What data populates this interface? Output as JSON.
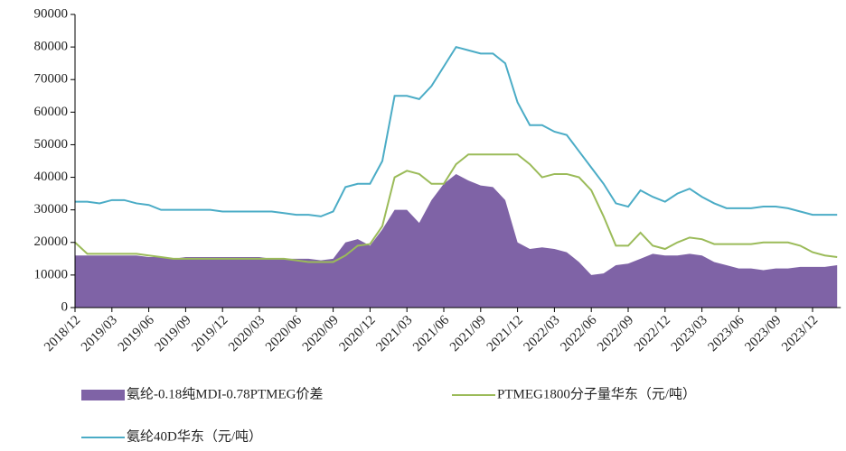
{
  "chart_data": {
    "type": "line",
    "categories": [
      "2018/12",
      null,
      null,
      "2019/03",
      null,
      null,
      "2019/06",
      null,
      null,
      "2019/09",
      null,
      null,
      "2019/12",
      null,
      null,
      "2020/03",
      null,
      null,
      "2020/06",
      null,
      null,
      "2020/09",
      null,
      null,
      "2020/12",
      null,
      null,
      "2021/03",
      null,
      null,
      "2021/06",
      null,
      null,
      "2021/09",
      null,
      null,
      "2021/12",
      null,
      null,
      "2022/03",
      null,
      null,
      "2022/06",
      null,
      null,
      "2022/09",
      null,
      null,
      "2022/12",
      null,
      null,
      "2023/03",
      null,
      null,
      "2023/06",
      null,
      null,
      "2023/09",
      null,
      null,
      "2023/12",
      null,
      null
    ],
    "series": [
      {
        "name": "氨纶-0.18纯MDI-0.78PTMEG价差",
        "style": "area",
        "color": "#7f63a6",
        "values": [
          16000,
          16000,
          16000,
          16000,
          16000,
          16000,
          15500,
          15500,
          15000,
          15500,
          15500,
          15500,
          15500,
          15500,
          15500,
          15500,
          15000,
          15000,
          15000,
          15000,
          14500,
          15000,
          20000,
          21000,
          19000,
          24000,
          30000,
          30000,
          26000,
          33000,
          38000,
          41000,
          39000,
          37500,
          37000,
          33000,
          20000,
          18000,
          18500,
          18000,
          17000,
          14000,
          10000,
          10500,
          13000,
          13500,
          15000,
          16500,
          16000,
          16000,
          16500,
          16000,
          14000,
          13000,
          12000,
          12000,
          11500,
          12000,
          12000,
          12500,
          12500,
          12500,
          13000
        ]
      },
      {
        "name": "PTMEG1800分子量华东（元/吨）",
        "style": "line",
        "color": "#9bbb59",
        "values": [
          20000,
          16500,
          16500,
          16500,
          16500,
          16500,
          16000,
          15500,
          15000,
          15000,
          15000,
          15000,
          15000,
          15000,
          15000,
          15000,
          15000,
          15000,
          14500,
          14000,
          14000,
          14000,
          16000,
          19000,
          19500,
          25000,
          40000,
          42000,
          41000,
          38000,
          38000,
          44000,
          47000,
          47000,
          47000,
          47000,
          47000,
          44000,
          40000,
          41000,
          41000,
          40000,
          36000,
          28000,
          19000,
          19000,
          23000,
          19000,
          18000,
          20000,
          21500,
          21000,
          19500,
          19500,
          19500,
          19500,
          20000,
          20000,
          20000,
          19000,
          17000,
          16000,
          15500
        ]
      },
      {
        "name": "氨纶40D华东（元/吨）",
        "style": "line",
        "color": "#4bacc6",
        "values": [
          32500,
          32500,
          32000,
          33000,
          33000,
          32000,
          31500,
          30000,
          30000,
          30000,
          30000,
          30000,
          29500,
          29500,
          29500,
          29500,
          29500,
          29000,
          28500,
          28500,
          28000,
          29500,
          37000,
          38000,
          38000,
          45000,
          65000,
          65000,
          64000,
          68000,
          74000,
          80000,
          79000,
          78000,
          78000,
          75000,
          63000,
          56000,
          56000,
          54000,
          53000,
          48000,
          43000,
          38000,
          32000,
          31000,
          36000,
          34000,
          32500,
          35000,
          36500,
          34000,
          32000,
          30500,
          30500,
          30500,
          31000,
          31000,
          30500,
          29500,
          28500,
          28500,
          28500
        ]
      }
    ],
    "ylim": [
      0,
      90000
    ],
    "yticks": [
      0,
      10000,
      20000,
      30000,
      40000,
      50000,
      60000,
      70000,
      80000,
      90000
    ]
  }
}
